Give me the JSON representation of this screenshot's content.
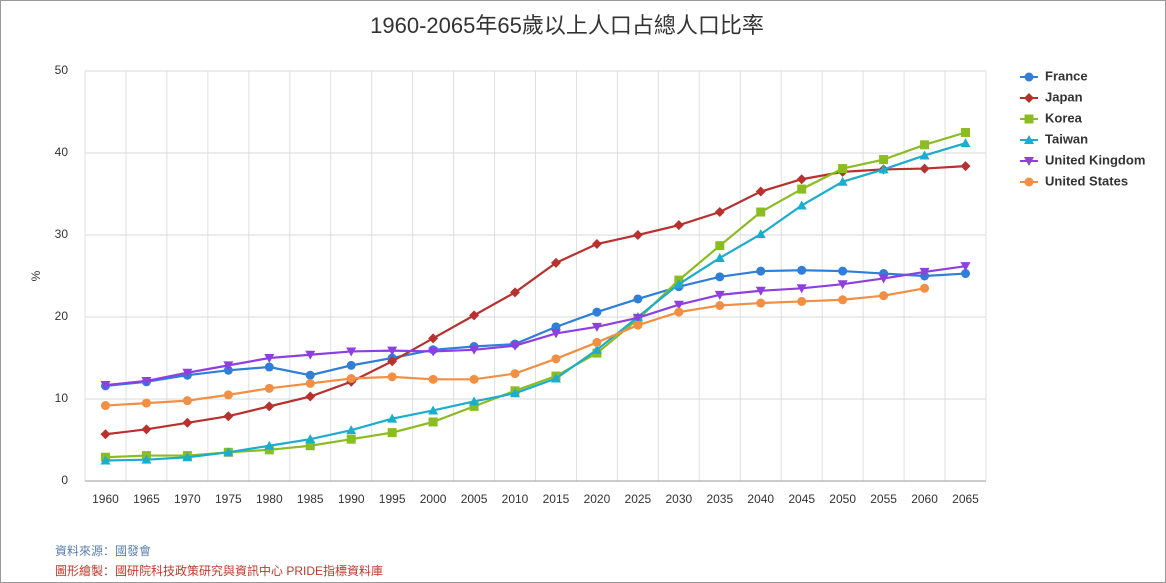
{
  "chart_data": {
    "type": "line",
    "title": "1960-2065年65歲以上人口占總人口比率",
    "y_label": "%",
    "categories": [
      "1960",
      "1965",
      "1970",
      "1975",
      "1980",
      "1985",
      "1990",
      "1995",
      "2000",
      "2005",
      "2010",
      "2015",
      "2020",
      "2025",
      "2030",
      "2035",
      "2040",
      "2045",
      "2050",
      "2055",
      "2060",
      "2065"
    ],
    "series": [
      {
        "name": "France",
        "color": "#2f7ed8",
        "marker": "circle",
        "values": [
          11.6,
          12.1,
          12.9,
          13.5,
          13.9,
          12.9,
          14.1,
          15.0,
          16.0,
          16.4,
          16.7,
          18.8,
          20.6,
          22.2,
          23.7,
          24.9,
          25.6,
          25.7,
          25.6,
          25.3,
          25.0,
          25.3
        ]
      },
      {
        "name": "Japan",
        "color": "#b8312f",
        "marker": "diamond",
        "values": [
          5.7,
          6.3,
          7.1,
          7.9,
          9.1,
          10.3,
          12.1,
          14.6,
          17.4,
          20.2,
          23.0,
          26.6,
          28.9,
          30.0,
          31.2,
          32.8,
          35.3,
          36.8,
          37.7,
          38.0,
          38.1,
          38.4
        ]
      },
      {
        "name": "Korea",
        "color": "#8bbc21",
        "marker": "square",
        "values": [
          2.9,
          3.1,
          3.1,
          3.5,
          3.8,
          4.3,
          5.1,
          5.9,
          7.2,
          9.1,
          11.0,
          12.8,
          15.6,
          19.7,
          24.5,
          28.7,
          32.8,
          35.6,
          38.1,
          39.2,
          41.0,
          42.5
        ]
      },
      {
        "name": "Taiwan",
        "color": "#1aadce",
        "marker": "triangle",
        "values": [
          2.5,
          2.6,
          2.9,
          3.5,
          4.3,
          5.1,
          6.2,
          7.6,
          8.6,
          9.7,
          10.7,
          12.5,
          16.0,
          20.0,
          24.0,
          27.2,
          30.1,
          33.6,
          36.5,
          38.0,
          39.7,
          41.2
        ]
      },
      {
        "name": "United Kingdom",
        "color": "#8e3fe0",
        "marker": "triangle-down",
        "values": [
          11.7,
          12.2,
          13.2,
          14.1,
          15.0,
          15.4,
          15.8,
          15.9,
          15.8,
          16.0,
          16.5,
          18.0,
          18.8,
          19.9,
          21.5,
          22.7,
          23.2,
          23.5,
          24.0,
          24.7,
          25.5,
          26.2
        ]
      },
      {
        "name": "United States",
        "color": "#f28f43",
        "marker": "circle",
        "values": [
          9.2,
          9.5,
          9.8,
          10.5,
          11.3,
          11.9,
          12.5,
          12.7,
          12.4,
          12.4,
          13.1,
          14.9,
          16.9,
          19.0,
          20.6,
          21.4,
          21.7,
          21.9,
          22.1,
          22.6,
          23.5,
          null
        ]
      }
    ],
    "ylim": [
      0,
      50
    ],
    "yticks": [
      0,
      10,
      20,
      30,
      40,
      50
    ],
    "grid": true,
    "legend": "top-right",
    "source": "資料來源：國發會",
    "credit": "圖形繪製：國研院科技政策研究與資訊中心 PRIDE指標資料庫"
  }
}
